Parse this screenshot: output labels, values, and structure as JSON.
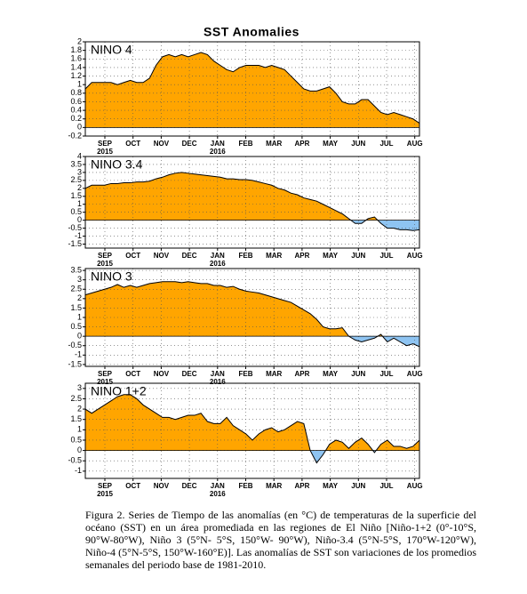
{
  "figure_title": "SST Anomalies",
  "chart_data": [
    {
      "type": "area",
      "label": "NINO 4",
      "values": [
        0.9,
        1.05,
        1.05,
        1.05,
        1.05,
        1.0,
        1.05,
        1.1,
        1.05,
        1.05,
        1.15,
        1.45,
        1.65,
        1.7,
        1.65,
        1.7,
        1.65,
        1.7,
        1.75,
        1.7,
        1.55,
        1.45,
        1.35,
        1.3,
        1.4,
        1.45,
        1.45,
        1.45,
        1.4,
        1.45,
        1.4,
        1.35,
        1.2,
        1.05,
        0.9,
        0.85,
        0.85,
        0.9,
        0.95,
        0.8,
        0.6,
        0.55,
        0.55,
        0.65,
        0.65,
        0.5,
        0.35,
        0.3,
        0.35,
        0.3,
        0.25,
        0.2,
        0.1
      ],
      "ylim": [
        -0.2,
        2
      ],
      "yticks": [
        -0.2,
        0,
        0.2,
        0.4,
        0.6,
        0.8,
        1,
        1.2,
        1.4,
        1.6,
        1.8,
        2
      ],
      "xticks": [
        "SEP",
        "OCT",
        "NOV",
        "DEC",
        "JAN",
        "FEB",
        "MAR",
        "APR",
        "MAY",
        "JUN",
        "JUL",
        "AUG"
      ],
      "xtick_years": [
        "2015",
        null,
        null,
        null,
        "2016",
        null,
        null,
        null,
        null,
        null,
        null,
        null
      ],
      "colors": {
        "positive": "#ffa500",
        "negative": "#8ec4f2"
      },
      "grid": true
    },
    {
      "type": "area",
      "label": "NINO 3.4",
      "values": [
        2.0,
        2.2,
        2.2,
        2.2,
        2.3,
        2.3,
        2.35,
        2.35,
        2.4,
        2.4,
        2.45,
        2.6,
        2.7,
        2.85,
        2.95,
        3.0,
        2.95,
        2.9,
        2.85,
        2.8,
        2.75,
        2.7,
        2.6,
        2.6,
        2.55,
        2.55,
        2.5,
        2.4,
        2.3,
        2.2,
        2.0,
        1.9,
        1.7,
        1.6,
        1.4,
        1.3,
        1.2,
        1.0,
        0.8,
        0.6,
        0.4,
        0.1,
        -0.2,
        -0.2,
        0.1,
        0.2,
        -0.2,
        -0.5,
        -0.5,
        -0.6,
        -0.6,
        -0.65,
        -0.6
      ],
      "ylim": [
        -1.75,
        4
      ],
      "yticks": [
        -1.5,
        -1,
        -0.5,
        0,
        0.5,
        1,
        1.5,
        2,
        2.5,
        3,
        3.5,
        4
      ],
      "xticks": [
        "SEP",
        "OCT",
        "NOV",
        "DEC",
        "JAN",
        "FEB",
        "MAR",
        "APR",
        "MAY",
        "JUN",
        "JUL",
        "AUG"
      ],
      "xtick_years": [
        "2015",
        null,
        null,
        null,
        "2016",
        null,
        null,
        null,
        null,
        null,
        null,
        null
      ],
      "colors": {
        "positive": "#ffa500",
        "negative": "#8ec4f2"
      },
      "grid": true
    },
    {
      "type": "area",
      "label": "NINO 3",
      "values": [
        2.2,
        2.3,
        2.4,
        2.5,
        2.6,
        2.75,
        2.6,
        2.7,
        2.6,
        2.7,
        2.8,
        2.85,
        2.9,
        2.9,
        2.9,
        2.85,
        2.9,
        2.85,
        2.8,
        2.8,
        2.7,
        2.7,
        2.6,
        2.65,
        2.5,
        2.4,
        2.35,
        2.3,
        2.2,
        2.1,
        2.0,
        1.9,
        1.8,
        1.6,
        1.4,
        1.2,
        0.9,
        0.5,
        0.4,
        0.4,
        0.45,
        0.0,
        -0.2,
        -0.3,
        -0.2,
        -0.1,
        0.1,
        -0.3,
        -0.1,
        -0.3,
        -0.5,
        -0.4,
        -0.55
      ],
      "ylim": [
        -1.6,
        3.6
      ],
      "yticks": [
        -1.5,
        -1,
        -0.5,
        0,
        0.5,
        1,
        1.5,
        2,
        2.5,
        3,
        3.5
      ],
      "xticks": [
        "SEP",
        "OCT",
        "NOV",
        "DEC",
        "JAN",
        "FEB",
        "MAR",
        "APR",
        "MAY",
        "JUN",
        "JUL",
        "AUG"
      ],
      "xtick_years": [
        "2015",
        null,
        null,
        null,
        "2016",
        null,
        null,
        null,
        null,
        null,
        null,
        null
      ],
      "colors": {
        "positive": "#ffa500",
        "negative": "#8ec4f2"
      },
      "grid": true
    },
    {
      "type": "area",
      "label": "NINO 1+2",
      "values": [
        2.0,
        1.8,
        2.0,
        2.2,
        2.4,
        2.6,
        2.7,
        2.7,
        2.5,
        2.2,
        2.0,
        1.8,
        1.6,
        1.6,
        1.5,
        1.6,
        1.7,
        1.7,
        1.8,
        1.4,
        1.3,
        1.3,
        1.6,
        1.2,
        1.0,
        0.8,
        0.5,
        0.8,
        1.0,
        1.1,
        0.9,
        1.0,
        1.2,
        1.4,
        1.3,
        0.0,
        -0.6,
        -0.2,
        0.3,
        0.5,
        0.4,
        0.1,
        0.4,
        0.6,
        0.3,
        -0.1,
        0.3,
        0.5,
        0.2,
        0.2,
        0.1,
        0.2,
        0.5
      ],
      "ylim": [
        -1.35,
        3.25
      ],
      "yticks": [
        -1,
        -0.5,
        0,
        0.5,
        1,
        1.5,
        2,
        2.5,
        3
      ],
      "xticks": [
        "SEP",
        "OCT",
        "NOV",
        "DEC",
        "JAN",
        "FEB",
        "MAR",
        "APR",
        "MAY",
        "JUN",
        "JUL",
        "AUG"
      ],
      "xtick_years": [
        "2015",
        null,
        null,
        null,
        "2016",
        null,
        null,
        null,
        null,
        null,
        null,
        null
      ],
      "colors": {
        "positive": "#ffa500",
        "negative": "#8ec4f2"
      },
      "grid": true
    }
  ],
  "caption": "Figura 2. Series de Tiempo de las anomalías (en °C) de temperaturas de la superficie del océano (SST) en un área promediada en las regiones de El Niño [Niño-1+2 (0°-10°S, 90°W-80°W), Niño 3 (5°N- 5°S, 150°W- 90°W), Niño-3.4 (5°N-5°S, 170°W-120°W), Niño-4 (5°N-5°S, 150°W-160°E)]. Las anomalías de SST son variaciones de los promedios semanales del periodo base de 1981-2010."
}
